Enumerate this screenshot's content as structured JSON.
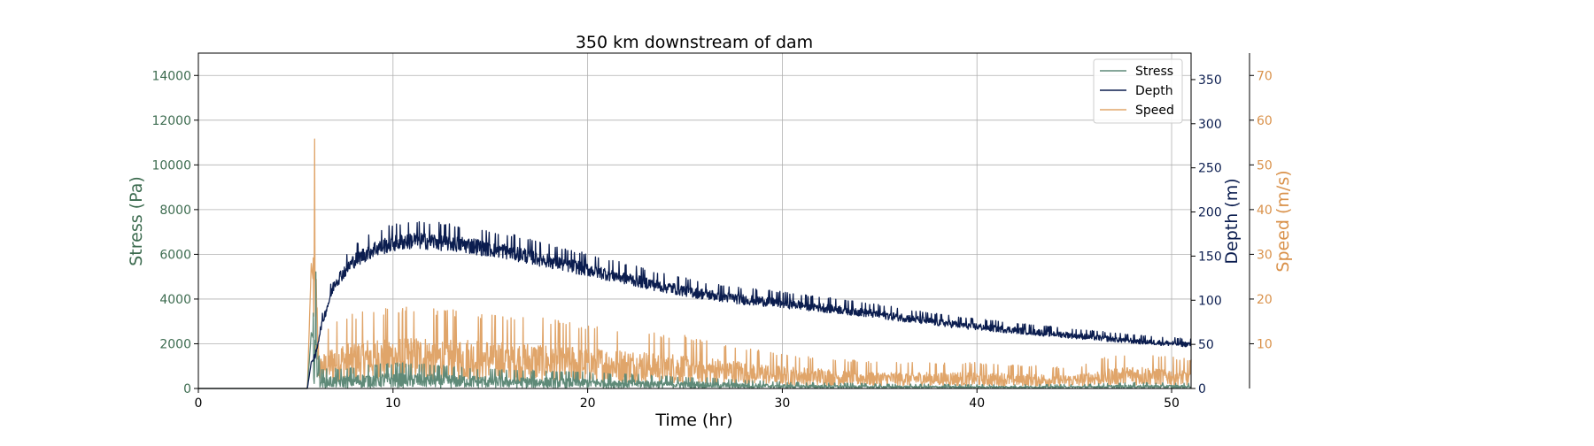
{
  "chart_data": {
    "type": "line",
    "title": "350 km downstream of dam",
    "xlabel": "Time (hr)",
    "xlim": [
      0,
      51
    ],
    "xticks": [
      0,
      10,
      20,
      30,
      40,
      50
    ],
    "grid": true,
    "legend_position": "top-right",
    "axes": [
      {
        "id": "stress",
        "label": "Stress (Pa)",
        "side": "left",
        "color": "#3c6b4f",
        "ylim": [
          0,
          15000
        ],
        "ticks": [
          0,
          2000,
          4000,
          6000,
          8000,
          10000,
          12000,
          14000
        ]
      },
      {
        "id": "depth",
        "label": "Depth (m)",
        "side": "right",
        "color": "#0b1d4f",
        "ylim": [
          0,
          380
        ],
        "ticks": [
          0,
          50,
          100,
          150,
          200,
          250,
          300,
          350
        ]
      },
      {
        "id": "speed",
        "label": "Speed (m/s)",
        "side": "right-outer",
        "color": "#d9914a",
        "ylim": [
          0,
          75
        ],
        "ticks": [
          10,
          20,
          30,
          40,
          50,
          60,
          70
        ]
      }
    ],
    "series": [
      {
        "name": "Stress",
        "axis": "stress",
        "color": "#5f8a78",
        "noise": 0.9,
        "x": [
          0,
          5.6,
          5.8,
          6.0,
          6.3,
          7,
          10,
          15,
          20,
          25,
          30,
          35,
          40,
          45,
          48,
          51
        ],
        "y": [
          0,
          0,
          2500,
          2000,
          300,
          300,
          400,
          300,
          250,
          180,
          100,
          70,
          60,
          60,
          90,
          80
        ]
      },
      {
        "name": "Depth",
        "axis": "depth",
        "color": "#0b1d4f",
        "noise": 0.06,
        "x": [
          0,
          5.6,
          5.8,
          6.0,
          6.3,
          7,
          8,
          9,
          10,
          11,
          12,
          13,
          14,
          16,
          18,
          20,
          22,
          24,
          26,
          28,
          30,
          32,
          34,
          36,
          38,
          40,
          42,
          44,
          46,
          48,
          50,
          51
        ],
        "y": [
          0,
          0,
          30,
          35,
          70,
          120,
          145,
          158,
          165,
          168,
          167,
          165,
          162,
          155,
          145,
          135,
          125,
          115,
          107,
          101,
          97,
          92,
          87,
          81,
          75,
          70,
          66,
          62,
          58,
          54,
          51,
          50
        ]
      },
      {
        "name": "Speed",
        "axis": "speed",
        "color": "#e0a56a",
        "noise": 0.75,
        "x": [
          0,
          5.6,
          5.8,
          6.0,
          6.2,
          7,
          10,
          15,
          20,
          25,
          30,
          35,
          40,
          45,
          46.5,
          48,
          51
        ],
        "y": [
          0,
          0,
          28,
          20,
          4,
          6,
          7,
          6.5,
          5.5,
          4.5,
          3,
          2.2,
          2.2,
          1.8,
          2.6,
          3,
          2.5
        ]
      }
    ]
  }
}
